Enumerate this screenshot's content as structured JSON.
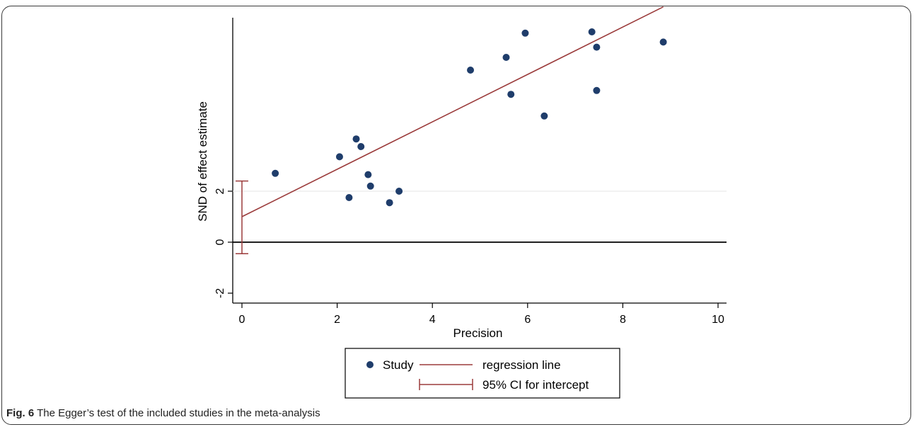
{
  "chart_data": {
    "type": "scatter",
    "xlabel": "Precision",
    "ylabel": "SND of effect estimate",
    "xlim": [
      0,
      10
    ],
    "ylim": [
      -2.5,
      9
    ],
    "x_ticks": [
      0,
      2,
      4,
      6,
      8,
      10
    ],
    "y_ticks": [
      -2,
      0,
      2
    ],
    "grid": false,
    "reference_lines": [
      {
        "axis": "y",
        "value": 0
      },
      {
        "axis": "y",
        "value": 2
      }
    ],
    "series": [
      {
        "name": "Study",
        "kind": "points",
        "color": "#1f3d6b",
        "points": [
          [
            0.7,
            2.7
          ],
          [
            2.05,
            3.35
          ],
          [
            2.25,
            1.75
          ],
          [
            2.4,
            4.05
          ],
          [
            2.5,
            3.75
          ],
          [
            2.65,
            2.65
          ],
          [
            2.7,
            2.2
          ],
          [
            3.1,
            1.55
          ],
          [
            3.3,
            2.0
          ],
          [
            4.8,
            6.75
          ],
          [
            5.55,
            7.25
          ],
          [
            5.65,
            5.8
          ],
          [
            5.95,
            8.2
          ],
          [
            6.35,
            4.95
          ],
          [
            7.35,
            8.25
          ],
          [
            7.45,
            7.65
          ],
          [
            7.45,
            5.95
          ],
          [
            8.85,
            7.85
          ]
        ]
      },
      {
        "name": "regression line",
        "kind": "line",
        "color": "#9b3b3b",
        "intercept": 1.0,
        "slope": 0.93,
        "x_range": [
          0,
          8.85
        ]
      },
      {
        "name": "95% CI for intercept",
        "kind": "errorbar",
        "color": "#9b3b3b",
        "x": 0,
        "lower": -0.45,
        "upper": 2.4
      }
    ],
    "legend_position": "bottom"
  },
  "caption": {
    "label": "Fig. 6",
    "text": "The Egger’s test of the included studies in the meta-analysis"
  }
}
